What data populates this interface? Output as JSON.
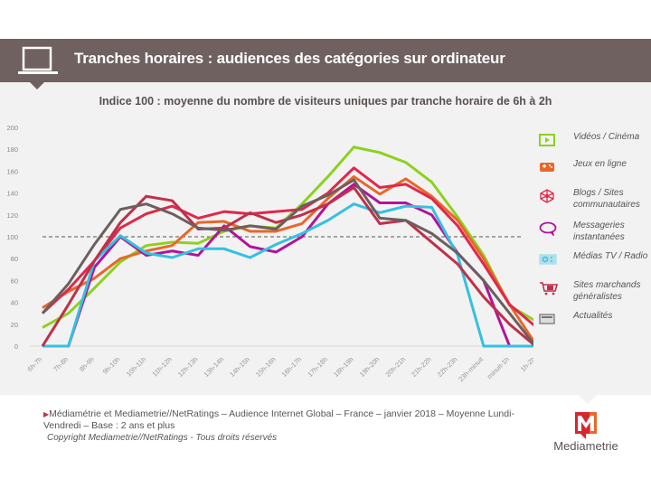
{
  "header": {
    "title": "Tranches horaires : audiences des catégories sur ordinateur",
    "icon": "laptop-icon"
  },
  "subtitle": "Indice 100 : moyenne du nombre de visiteurs uniques par tranche horaire de 6h à 2h",
  "legend": [
    {
      "label": "Vidéos / Cinéma",
      "icon": "video-play-icon",
      "color": "#8cd21e"
    },
    {
      "label": "Jeux en ligne",
      "icon": "gamepad-icon",
      "color": "#e8672a"
    },
    {
      "label": "Blogs / Sites communautaires",
      "icon": "network-icon",
      "color": "#e0284a"
    },
    {
      "label": "Messageries instantanées",
      "icon": "chat-bubble-icon",
      "color": "#b4129a"
    },
    {
      "label": "Médias TV / Radio",
      "icon": "radio-icon",
      "color": "#35c0e0"
    },
    {
      "label": "Sites marchands généralistes",
      "icon": "shopping-cart-icon",
      "color": "#c0304a"
    },
    {
      "label": "Actualités",
      "icon": "newspaper-icon",
      "color": "#6b5f5f"
    }
  ],
  "chart_data": {
    "type": "line",
    "title": "Indice 100 : moyenne du nombre de visiteurs uniques par tranche horaire de 6h à 2h",
    "xlabel": "",
    "ylabel": "",
    "ylim": [
      0,
      200
    ],
    "yticks": [
      0,
      20,
      40,
      60,
      80,
      100,
      120,
      140,
      160,
      180,
      200
    ],
    "grid": false,
    "reference_line": {
      "value": 100,
      "style": "dashed"
    },
    "legend_position": "right",
    "categories": [
      "6h-7h",
      "7h-8h",
      "8h-9h",
      "9h-10h",
      "10h-11h",
      "11h-12h",
      "12h-13h",
      "13h-14h",
      "14h-15h",
      "15h-16h",
      "16h-17h",
      "17h-18h",
      "18h-19h",
      "19h-20h",
      "20h-21h",
      "21h-22h",
      "22h-23h",
      "23h-minuit",
      "minuit-1h",
      "1h-2h"
    ],
    "series": [
      {
        "name": "Vidéos / Cinéma",
        "color": "#8cd21e",
        "values": [
          17,
          30,
          53,
          77,
          92,
          95,
          94,
          105,
          110,
          108,
          130,
          155,
          182,
          177,
          168,
          150,
          118,
          83,
          37,
          23
        ]
      },
      {
        "name": "Jeux en ligne",
        "color": "#e8672a",
        "values": [
          35,
          50,
          62,
          80,
          87,
          92,
          113,
          114,
          105,
          105,
          112,
          135,
          155,
          139,
          153,
          137,
          115,
          80,
          38,
          2
        ]
      },
      {
        "name": "Blogs / Sites communautaires",
        "color": "#e0284a",
        "values": [
          30,
          52,
          78,
          108,
          121,
          128,
          117,
          123,
          121,
          123,
          125,
          140,
          163,
          145,
          148,
          135,
          110,
          75,
          38,
          18
        ]
      },
      {
        "name": "Messageries instantanées",
        "color": "#b4129a",
        "values": [
          0,
          0,
          72,
          100,
          83,
          87,
          83,
          110,
          91,
          86,
          100,
          130,
          148,
          131,
          131,
          120,
          85,
          60,
          0,
          0
        ]
      },
      {
        "name": "Médias TV / Radio",
        "color": "#35c0e0",
        "values": [
          0,
          0,
          78,
          101,
          85,
          81,
          89,
          89,
          81,
          93,
          103,
          115,
          130,
          122,
          128,
          127,
          83,
          0,
          0,
          0
        ]
      },
      {
        "name": "Sites marchands généralistes",
        "color": "#c0304a",
        "values": [
          0,
          38,
          78,
          113,
          137,
          133,
          107,
          108,
          122,
          113,
          120,
          130,
          145,
          112,
          115,
          95,
          75,
          45,
          20,
          0
        ]
      },
      {
        "name": "Actualités",
        "color": "#6b5f5f",
        "values": [
          30,
          57,
          93,
          125,
          130,
          121,
          108,
          106,
          110,
          107,
          128,
          138,
          152,
          117,
          115,
          103,
          85,
          60,
          30,
          0
        ]
      }
    ]
  },
  "footer": {
    "source": "Médiamétrie et Mediametrie//NetRatings – Audience Internet Global – France – janvier 2018 – Moyenne Lundi-Vendredi – Base : 2 ans et plus",
    "copyright": "Copyright Mediametrie//NetRatings - Tous droits réservés"
  },
  "logo": {
    "text": "Mediametrie",
    "colors": {
      "primary": "#d9262e",
      "secondary": "#e8672a"
    }
  }
}
